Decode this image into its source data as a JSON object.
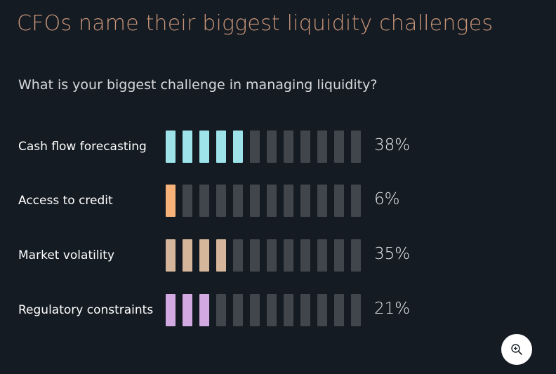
{
  "title": "CFOs name their biggest liquidity challenges",
  "question": "What is your biggest challenge in managing liquidity?",
  "colors": {
    "background": "#141b22",
    "empty_segment": "#41464c",
    "title": "#c9957a"
  },
  "zoom_button": {
    "icon": "zoom-in-icon"
  },
  "chart_data": {
    "type": "bar",
    "categories": [
      "Cash flow forecasting",
      "Access to credit",
      "Market volatility",
      "Regulatory constraints"
    ],
    "values": [
      38,
      6,
      35,
      21
    ],
    "value_labels": [
      "38%",
      "6%",
      "35%",
      "21%"
    ],
    "segments_total": 12,
    "segments_filled": [
      5,
      1,
      4,
      3
    ],
    "colors": [
      "#9ee3ea",
      "#f7b27a",
      "#d6b69a",
      "#d3a9e2"
    ],
    "xlabel": "",
    "ylabel": "",
    "ylim": [
      0,
      100
    ],
    "grid": false,
    "legend": "none"
  }
}
